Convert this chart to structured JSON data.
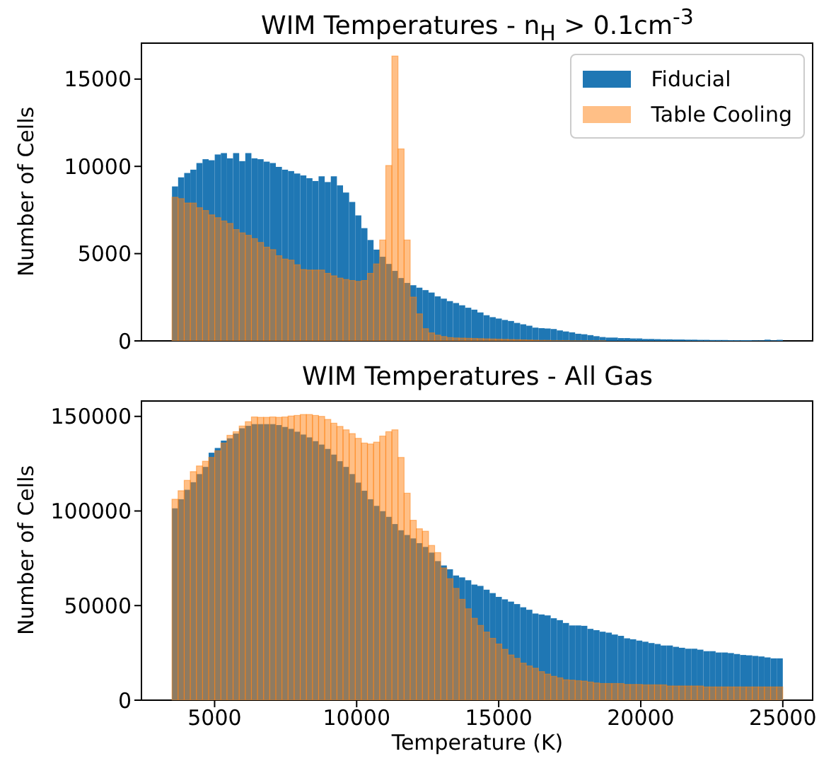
{
  "chart_data": [
    {
      "type": "histogram",
      "title": "WIM Temperatures - n$_{H}$ > 0.1cm$^{-3}$",
      "ylabel": "Number of Cells",
      "bins": [
        3500,
        3715,
        3930,
        4145,
        4360,
        4575,
        4790,
        5005,
        5220,
        5435,
        5650,
        5865,
        6080,
        6295,
        6510,
        6725,
        6940,
        7155,
        7370,
        7585,
        7800,
        8015,
        8230,
        8445,
        8660,
        8875,
        9090,
        9305,
        9520,
        9735,
        9950,
        10165,
        10380,
        10595,
        10810,
        11025,
        11240,
        11455,
        11670,
        11885,
        12100,
        12315,
        12530,
        12745,
        12960,
        13175,
        13390,
        13605,
        13820,
        14035,
        14250,
        14465,
        14680,
        14895,
        15110,
        15325,
        15540,
        15755,
        15970,
        16185,
        16400,
        16615,
        16830,
        17045,
        17260,
        17475,
        17690,
        17905,
        18120,
        18335,
        18550,
        18765,
        18980,
        19195,
        19410,
        19625,
        19840,
        20055,
        20270,
        20485,
        20700,
        20915,
        21130,
        21345,
        21560,
        21775,
        21990,
        22205,
        22420,
        22635,
        22850,
        23065,
        23280,
        23495,
        23710,
        23925,
        24140,
        24355,
        24570,
        24785,
        25000
      ],
      "series": [
        {
          "name": "Fiducial",
          "color": "#1f77b4",
          "values": [
            8850,
            9370,
            9620,
            9810,
            10190,
            10410,
            10350,
            10680,
            10760,
            10460,
            10760,
            10300,
            10760,
            10460,
            10410,
            10270,
            10190,
            9970,
            9810,
            9730,
            9590,
            9480,
            9320,
            9160,
            9430,
            9100,
            9430,
            8910,
            8500,
            7960,
            7190,
            6460,
            5780,
            5230,
            4820,
            4410,
            4010,
            3600,
            3320,
            3190,
            3050,
            2910,
            2770,
            2550,
            2420,
            2280,
            2170,
            2040,
            1900,
            1790,
            1630,
            1470,
            1360,
            1280,
            1200,
            1140,
            1030,
            950,
            870,
            760,
            730,
            710,
            680,
            600,
            540,
            490,
            410,
            380,
            330,
            270,
            220,
            190,
            190,
            160,
            160,
            140,
            140,
            110,
            110,
            100,
            90,
            90,
            80,
            80,
            70,
            70,
            60,
            60,
            50,
            50,
            50,
            40,
            40,
            40,
            40,
            30,
            30,
            70,
            30,
            60
          ]
        },
        {
          "name": "Table Cooling",
          "color": "#ff7f0e",
          "values": [
            8230,
            8150,
            7900,
            7900,
            7630,
            7470,
            7220,
            7060,
            6870,
            6730,
            6380,
            6190,
            6050,
            5860,
            5640,
            5370,
            5230,
            4880,
            4690,
            4630,
            4360,
            4090,
            4060,
            4060,
            4060,
            3870,
            3730,
            3600,
            3520,
            3460,
            3410,
            3460,
            3870,
            4410,
            5780,
            10050,
            16320,
            11000,
            5780,
            2510,
            1550,
            700,
            460,
            330,
            250,
            190,
            170,
            160,
            150,
            140,
            130,
            120,
            110,
            100,
            90,
            80,
            70,
            60,
            50,
            40,
            30,
            30,
            20,
            20,
            20,
            10,
            10,
            10,
            10,
            10,
            10,
            0,
            0,
            0,
            0,
            0,
            0,
            0,
            0,
            0,
            0,
            0,
            0,
            0,
            0,
            0,
            0,
            0,
            0,
            0,
            0,
            0,
            0,
            0,
            0,
            0,
            0,
            0,
            0,
            0
          ]
        }
      ],
      "xlim": [
        2425,
        26075
      ],
      "xticks": [
        5000,
        10000,
        15000,
        20000,
        25000
      ],
      "ylim": [
        0,
        17100
      ],
      "yticks": [
        0,
        5000,
        10000,
        15000
      ],
      "tick_labels": "y",
      "legend": "top right"
    },
    {
      "type": "histogram",
      "title": "WIM Temperatures - All Gas",
      "xlabel": "Temperature (K)",
      "ylabel": "Number of Cells",
      "bins": [
        3500,
        3715,
        3930,
        4145,
        4360,
        4575,
        4790,
        5005,
        5220,
        5435,
        5650,
        5865,
        6080,
        6295,
        6510,
        6725,
        6940,
        7155,
        7370,
        7585,
        7800,
        8015,
        8230,
        8445,
        8660,
        8875,
        9090,
        9305,
        9520,
        9735,
        9950,
        10165,
        10380,
        10595,
        10810,
        11025,
        11240,
        11455,
        11670,
        11885,
        12100,
        12315,
        12530,
        12745,
        12960,
        13175,
        13390,
        13605,
        13820,
        14035,
        14250,
        14465,
        14680,
        14895,
        15110,
        15325,
        15540,
        15755,
        15970,
        16185,
        16400,
        16615,
        16830,
        17045,
        17260,
        17475,
        17690,
        17905,
        18120,
        18335,
        18550,
        18765,
        18980,
        19195,
        19410,
        19625,
        19840,
        20055,
        20270,
        20485,
        20700,
        20915,
        21130,
        21345,
        21560,
        21775,
        21990,
        22205,
        22420,
        22635,
        22850,
        23065,
        23280,
        23495,
        23710,
        23925,
        24140,
        24355,
        24570,
        24785,
        25000
      ],
      "series": [
        {
          "color": "#1f77b4",
          "values": [
            101400,
            106200,
            111200,
            115200,
            119500,
            123300,
            130800,
            133300,
            137200,
            138400,
            140900,
            143700,
            145000,
            145900,
            145900,
            145900,
            145900,
            145400,
            144400,
            143400,
            141900,
            140400,
            138900,
            136900,
            135100,
            132800,
            129800,
            126300,
            123300,
            119500,
            115000,
            110700,
            106200,
            102700,
            99900,
            96900,
            93100,
            89800,
            87300,
            85500,
            83000,
            81000,
            78000,
            73500,
            71200,
            69200,
            65900,
            64900,
            63400,
            61100,
            60400,
            58400,
            56600,
            54600,
            53300,
            52100,
            50800,
            49100,
            47800,
            45800,
            45300,
            44800,
            43300,
            42300,
            40800,
            39500,
            39500,
            39300,
            37700,
            37000,
            36200,
            35700,
            34700,
            34000,
            32700,
            32200,
            31500,
            30900,
            30200,
            29700,
            28900,
            28900,
            28200,
            27700,
            27200,
            27200,
            26700,
            25900,
            25900,
            25200,
            25200,
            24900,
            24400,
            23900,
            23700,
            23400,
            23100,
            22600,
            22100,
            22100
          ]
        },
        {
          "color": "#ff7f0e",
          "values": [
            106200,
            110700,
            116200,
            120800,
            123800,
            126300,
            128300,
            131800,
            135900,
            140000,
            141900,
            144900,
            147200,
            149700,
            149500,
            149500,
            149700,
            149500,
            149700,
            150200,
            150500,
            151000,
            151000,
            150500,
            150000,
            148400,
            146400,
            144700,
            142900,
            140900,
            138400,
            135900,
            135400,
            136400,
            139600,
            141900,
            142900,
            128300,
            109400,
            95100,
            90600,
            89300,
            81800,
            78000,
            69900,
            64200,
            59100,
            53300,
            48300,
            43300,
            39500,
            36000,
            32700,
            29700,
            26900,
            23900,
            22100,
            19600,
            18100,
            16900,
            15100,
            13800,
            12600,
            11800,
            10800,
            10600,
            10300,
            10100,
            9600,
            9100,
            8800,
            8800,
            8800,
            8800,
            8300,
            8300,
            8300,
            8100,
            8100,
            8100,
            8100,
            7500,
            7500,
            7500,
            7500,
            7500,
            7500,
            7000,
            7000,
            7000,
            7000,
            7000,
            7000,
            7000,
            7000,
            7000,
            7000,
            7000,
            7000,
            7000
          ]
        }
      ],
      "xlim": [
        2425,
        26075
      ],
      "xticks": [
        5000,
        10000,
        15000,
        20000,
        25000
      ],
      "ylim": [
        0,
        158500
      ],
      "yticks": [
        0,
        50000,
        100000,
        150000
      ]
    }
  ]
}
